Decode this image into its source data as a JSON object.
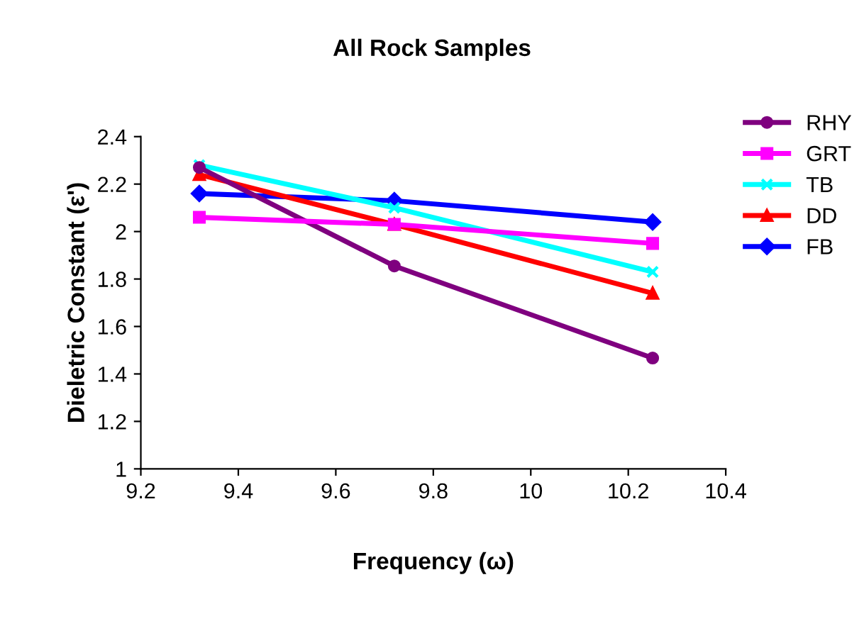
{
  "chart_data": {
    "type": "line",
    "title": "All Rock Samples",
    "xlabel": "Frequency (ω)",
    "ylabel": "Dieletric Constant (ε')",
    "xlim": [
      9.2,
      10.4
    ],
    "xticks": [
      9.2,
      9.4,
      9.6,
      9.8,
      10,
      10.2,
      10.4
    ],
    "ylim": [
      1,
      2.4
    ],
    "yticks": [
      1,
      1.2,
      1.4,
      1.6,
      1.8,
      2,
      2.2,
      2.4
    ],
    "legend": "right",
    "grid": false,
    "series": [
      {
        "name": "RHY",
        "color": "#7f007f",
        "marker": "circle",
        "x": [
          9.32,
          9.72,
          10.25
        ],
        "values": [
          2.27,
          1.855,
          1.467
        ]
      },
      {
        "name": "GRT",
        "color": "#ff00ff",
        "marker": "square",
        "x": [
          9.32,
          9.72,
          10.25
        ],
        "values": [
          2.06,
          2.03,
          1.95
        ]
      },
      {
        "name": "TB",
        "color": "#00ffff",
        "marker": "cross",
        "x": [
          9.32,
          9.72,
          10.25
        ],
        "values": [
          2.28,
          2.1,
          1.83
        ]
      },
      {
        "name": "DD",
        "color": "#ff0000",
        "marker": "triangle",
        "x": [
          9.32,
          9.72,
          10.25
        ],
        "values": [
          2.24,
          2.03,
          1.74
        ]
      },
      {
        "name": "FB",
        "color": "#0000ff",
        "marker": "diamond",
        "x": [
          9.32,
          9.72,
          10.25
        ],
        "values": [
          2.16,
          2.13,
          2.04
        ]
      }
    ]
  }
}
